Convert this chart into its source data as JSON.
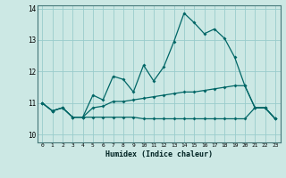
{
  "xlabel": "Humidex (Indice chaleur)",
  "bg_color": "#cce8e4",
  "grid_color": "#99cccc",
  "line_color": "#006666",
  "xlim": [
    -0.5,
    23.5
  ],
  "ylim": [
    9.75,
    14.1
  ],
  "yticks": [
    10,
    11,
    12,
    13,
    14
  ],
  "xticks": [
    0,
    1,
    2,
    3,
    4,
    5,
    6,
    7,
    8,
    9,
    10,
    11,
    12,
    13,
    14,
    15,
    16,
    17,
    18,
    19,
    20,
    21,
    22,
    23
  ],
  "line1_x": [
    0,
    1,
    2,
    3,
    4,
    5,
    6,
    7,
    8,
    9,
    10,
    11,
    12,
    13,
    14,
    15,
    16,
    17,
    18,
    19,
    20,
    21,
    22,
    23
  ],
  "line1_y": [
    11.0,
    10.75,
    10.85,
    10.55,
    10.55,
    11.25,
    11.1,
    11.85,
    11.75,
    11.35,
    12.2,
    11.7,
    12.15,
    12.95,
    13.85,
    13.55,
    13.2,
    13.35,
    13.05,
    12.45,
    11.55,
    10.85,
    10.85,
    10.5
  ],
  "line2_x": [
    0,
    1,
    2,
    3,
    4,
    5,
    6,
    7,
    8,
    9,
    10,
    11,
    12,
    13,
    14,
    15,
    16,
    17,
    18,
    19,
    20,
    21,
    22,
    23
  ],
  "line2_y": [
    11.0,
    10.75,
    10.85,
    10.55,
    10.55,
    10.85,
    10.9,
    11.05,
    11.05,
    11.1,
    11.15,
    11.2,
    11.25,
    11.3,
    11.35,
    11.35,
    11.4,
    11.45,
    11.5,
    11.55,
    11.55,
    10.85,
    10.85,
    10.5
  ],
  "line3_x": [
    0,
    1,
    2,
    3,
    4,
    5,
    6,
    7,
    8,
    9,
    10,
    11,
    12,
    13,
    14,
    15,
    16,
    17,
    18,
    19,
    20,
    21,
    22,
    23
  ],
  "line3_y": [
    11.0,
    10.75,
    10.85,
    10.55,
    10.55,
    10.55,
    10.55,
    10.55,
    10.55,
    10.55,
    10.5,
    10.5,
    10.5,
    10.5,
    10.5,
    10.5,
    10.5,
    10.5,
    10.5,
    10.5,
    10.5,
    10.85,
    10.85,
    10.5
  ]
}
